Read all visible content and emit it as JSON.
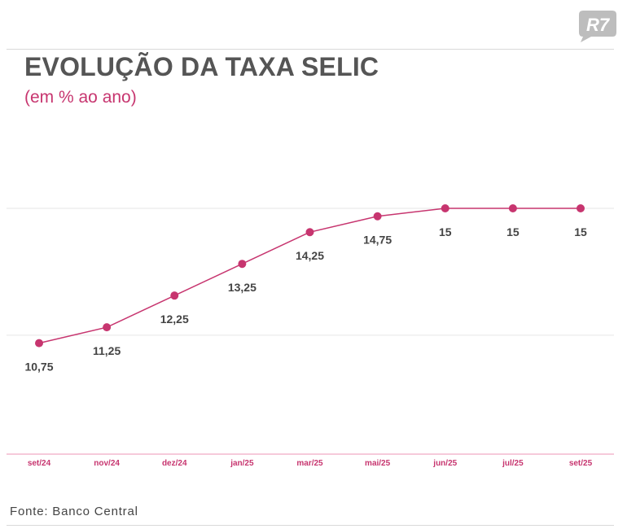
{
  "header": {
    "title": "EVOLUÇÃO DA TAXA SELIC",
    "subtitle": "(em % ao ano)",
    "logo_text": "R7"
  },
  "footer": {
    "source": "Fonte: Banco Central"
  },
  "colors": {
    "accent": "#c7356f",
    "label": "#444444",
    "grid": "#e6e6e6",
    "baseline": "#f3b9cd",
    "logo": "#bdbdbd"
  },
  "chart_data": {
    "type": "line",
    "title": "EVOLUÇÃO DA TAXA SELIC",
    "subtitle": "(em % ao ano)",
    "categories": [
      "set/24",
      "nov/24",
      "dez/24",
      "jan/25",
      "mar/25",
      "mai/25",
      "jun/25",
      "jul/25",
      "set/25"
    ],
    "values": [
      10.75,
      11.25,
      12.25,
      13.25,
      14.25,
      14.75,
      15,
      15,
      15
    ],
    "data_labels": [
      "10,75",
      "11,25",
      "12,25",
      "13,25",
      "14,25",
      "14,75",
      "15",
      "15",
      "15"
    ],
    "ylim": [
      7.25,
      15
    ],
    "grid": true,
    "xlabel": "",
    "ylabel": ""
  }
}
